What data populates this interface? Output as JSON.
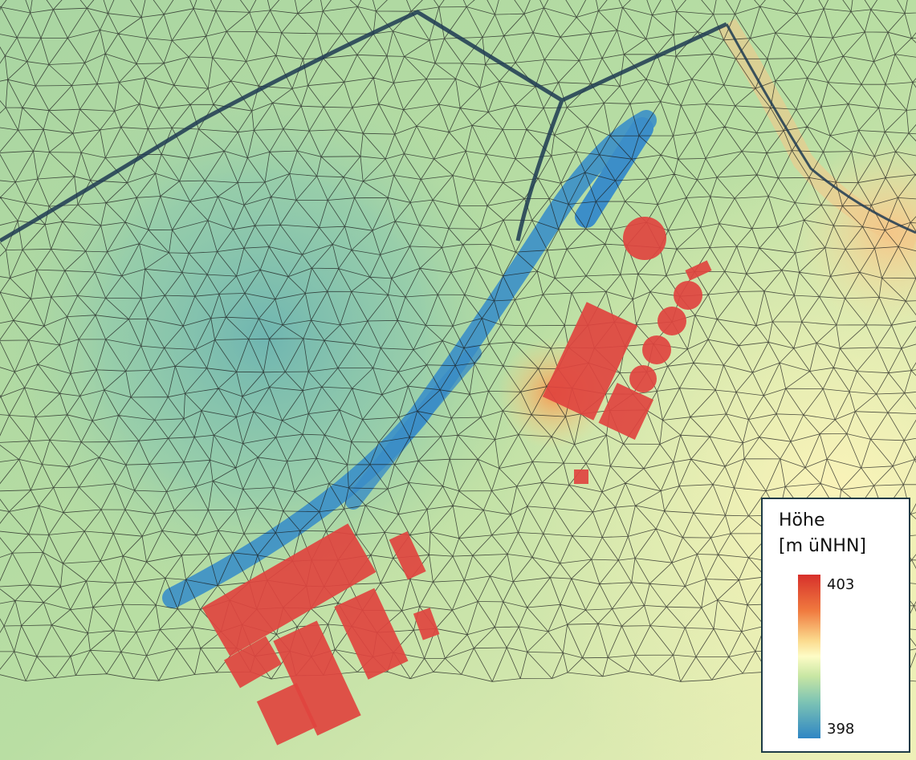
{
  "legend": {
    "title": "Höhe",
    "unit": "[m üNHN]",
    "max": 403,
    "min": 398
  }
}
